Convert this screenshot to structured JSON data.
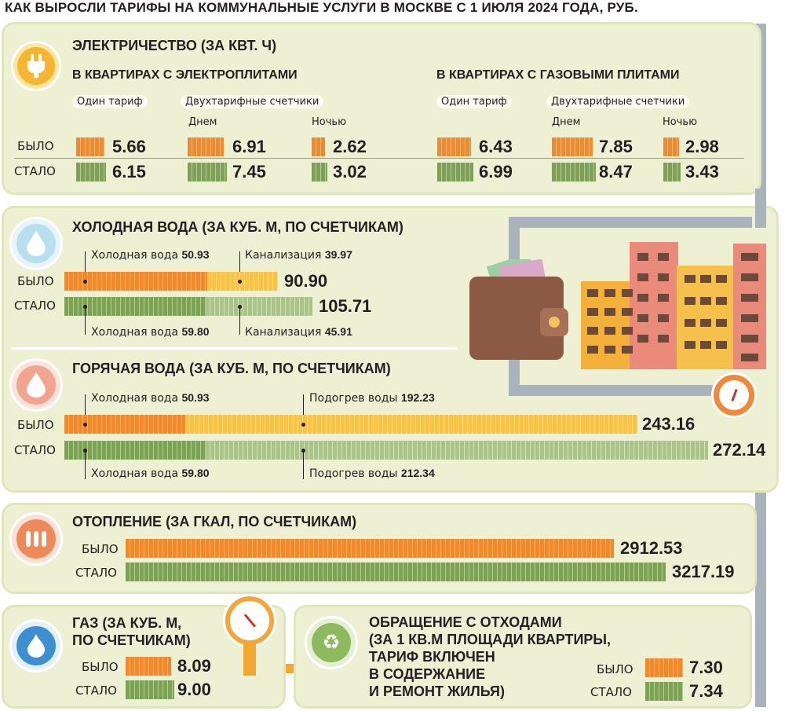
{
  "title": "КАК ВЫРОСЛИ ТАРИФЫ НА КОММУНАЛЬНЫЕ УСЛУГИ В МОСКВЕ С 1 ИЮЛЯ 2024 ГОДА, РУБ.",
  "labels": {
    "was": "БЫЛО",
    "now": "СТАЛО"
  },
  "electricity": {
    "heading": "ЭЛЕКТРИЧЕСТВО (ЗА КВТ. Ч)",
    "icon": "plug-icon",
    "electric_stoves": {
      "heading": "В КВАРТИРАХ С ЭЛЕКТРОПЛИТАМИ",
      "single": "Один тариф",
      "dual": "Двухтарифные счетчики",
      "day": "Днем",
      "night": "Ночью",
      "was": {
        "single": "5.66",
        "day": "6.91",
        "night": "2.62"
      },
      "now": {
        "single": "6.15",
        "day": "7.45",
        "night": "3.02"
      }
    },
    "gas_stoves": {
      "heading": "В КВАРТИРАХ С ГАЗОВЫМИ ПЛИТАМИ",
      "single": "Один тариф",
      "dual": "Двухтарифные счетчики",
      "day": "Днем",
      "night": "Ночью",
      "was": {
        "single": "6.43",
        "day": "7.85",
        "night": "2.98"
      },
      "now": {
        "single": "6.99",
        "day": "8.47",
        "night": "3.43"
      }
    }
  },
  "cold_water": {
    "heading": "ХОЛОДНАЯ ВОДА (ЗА КУБ. М, ПО СЧЕТЧИКАМ)",
    "icon": "water-drop-icon",
    "was": {
      "part1_label": "Холодная вода",
      "part1": "50.93",
      "part2_label": "Канализация",
      "part2": "39.97",
      "total": "90.90"
    },
    "now": {
      "part1_label": "Холодная вода",
      "part1": "59.80",
      "part2_label": "Канализация",
      "part2": "45.91",
      "total": "105.71"
    }
  },
  "hot_water": {
    "heading": "ГОРЯЧАЯ ВОДА (ЗА КУБ. М, ПО СЧЕТЧИКАМ)",
    "icon": "hot-water-drop-icon",
    "was": {
      "part1_label": "Холодная вода",
      "part1": "50.93",
      "part2_label": "Подогрев воды",
      "part2": "192.23",
      "total": "243.16"
    },
    "now": {
      "part1_label": "Холодная вода",
      "part1": "59.80",
      "part2_label": "Подогрев воды",
      "part2": "212.34",
      "total": "272.14"
    }
  },
  "heating": {
    "heading": "ОТОПЛЕНИЕ (ЗА ГКАЛ, ПО СЧЕТЧИКАМ)",
    "icon": "radiator-icon",
    "was": "2912.53",
    "now": "3217.19"
  },
  "gas": {
    "heading_line1": "ГАЗ (ЗА КУБ. М,",
    "heading_line2": "ПО СЧЕТЧИКАМ)",
    "icon": "gas-flame-icon",
    "was": "8.09",
    "now": "9.00"
  },
  "waste": {
    "heading_lines": [
      "ОБРАЩЕНИЕ С ОТХОДАМИ",
      "(ЗА 1 КВ.М ПЛОЩАДИ КВАРТИРЫ,",
      "ТАРИФ ВКЛЮЧЕН",
      "В СОДЕРЖАНИЕ",
      "И РЕМОНТ ЖИЛЬЯ)"
    ],
    "icon": "recycle-icon",
    "was": "7.30",
    "now": "7.34"
  },
  "colors": {
    "orange": "#ef8a2e",
    "yellow": "#f8c34a",
    "green": "#7da256",
    "light_green": "#a9c38a",
    "panel": "#eef0d4",
    "pipe": "#aab3bb"
  }
}
